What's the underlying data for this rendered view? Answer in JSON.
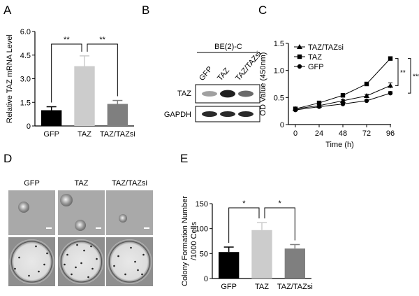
{
  "panels": {
    "a": "A",
    "b": "B",
    "c": "C",
    "d": "D",
    "e": "E"
  },
  "western_blot": {
    "cell_line": "BE(2)-C",
    "lane_labels": [
      "GFP",
      "TAZ",
      "TAZ/TAZsi"
    ],
    "rows": [
      {
        "label": "TAZ",
        "intensity": [
          0.35,
          0.95,
          0.6
        ]
      },
      {
        "label": "GAPDH",
        "intensity": [
          0.9,
          0.9,
          0.9
        ]
      }
    ]
  },
  "colony_images": {
    "labels": [
      "GFP",
      "TAZ",
      "TAZ/TAZsi"
    ]
  },
  "chart_data": [
    {
      "type": "bar",
      "panel": "A",
      "title": "",
      "xlabel": "",
      "ylabel": "Relative TAZ mRNA Level",
      "categories": [
        "GFP",
        "TAZ",
        "TAZ/TAZsi"
      ],
      "values": [
        1.0,
        3.8,
        1.4
      ],
      "errors": [
        0.22,
        0.65,
        0.22
      ],
      "colors": [
        "#000000",
        "#cccccc",
        "#7f7f7f"
      ],
      "ylim": [
        0,
        6.0
      ],
      "yticks": [
        "0",
        "1.5",
        "3.0",
        "4.5",
        "6.0"
      ],
      "significance": [
        {
          "between": [
            0,
            1
          ],
          "label": "**"
        },
        {
          "between": [
            1,
            2
          ],
          "label": "**"
        }
      ]
    },
    {
      "type": "line",
      "panel": "C",
      "title": "",
      "xlabel": "Time (h)",
      "ylabel": "OD Value (450nm)",
      "x": [
        0,
        24,
        48,
        72,
        96
      ],
      "xticks": [
        "0",
        "24",
        "48",
        "72",
        "96"
      ],
      "ylim": [
        0,
        1.5
      ],
      "yticks": [
        "0",
        "0.5",
        "1.0",
        "1.5"
      ],
      "series": [
        {
          "name": "TAZ/TAZsi",
          "marker": "triangle",
          "values": [
            0.29,
            0.35,
            0.44,
            0.53,
            0.72
          ],
          "errors": [
            0.02,
            0.02,
            0.02,
            0.03,
            0.05
          ]
        },
        {
          "name": "TAZ",
          "marker": "square",
          "values": [
            0.29,
            0.4,
            0.54,
            0.75,
            1.22
          ],
          "errors": [
            0.02,
            0.02,
            0.02,
            0.03,
            0.03
          ]
        },
        {
          "name": "GFP",
          "marker": "circle",
          "values": [
            0.27,
            0.33,
            0.38,
            0.44,
            0.58
          ],
          "errors": [
            0.02,
            0.02,
            0.02,
            0.02,
            0.03
          ]
        }
      ],
      "legend": "top-left",
      "significance": [
        "**",
        "***"
      ]
    },
    {
      "type": "bar",
      "panel": "E",
      "title": "",
      "xlabel": "",
      "ylabel": "Colony Formation Number /1000 Cells",
      "ylabel_lines": [
        "Colony Formation Number",
        "/1000 Cells"
      ],
      "categories": [
        "GFP",
        "TAZ",
        "TAZ/TAZsi"
      ],
      "values": [
        53,
        97,
        60
      ],
      "errors": [
        10,
        15,
        8
      ],
      "colors": [
        "#000000",
        "#cccccc",
        "#7f7f7f"
      ],
      "ylim": [
        0,
        150
      ],
      "yticks": [
        "0",
        "50",
        "100",
        "150"
      ],
      "significance": [
        {
          "between": [
            0,
            1
          ],
          "label": "*"
        },
        {
          "between": [
            1,
            2
          ],
          "label": "*"
        }
      ]
    }
  ]
}
